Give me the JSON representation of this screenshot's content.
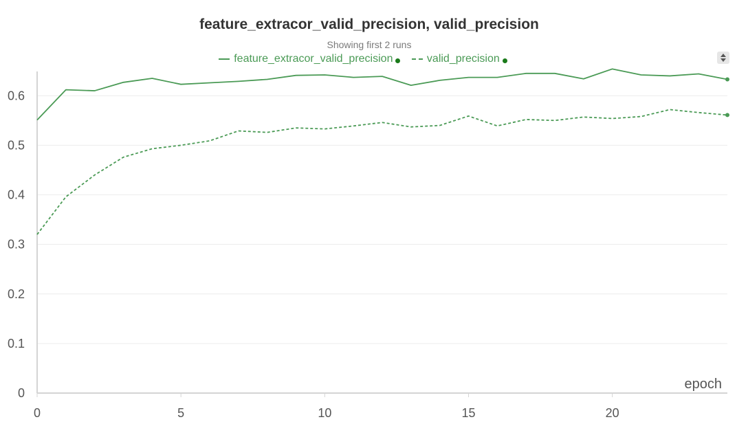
{
  "colors": {
    "series": "#4a9a55",
    "legend_dot": "#1a7a1a",
    "grid": "#ececec",
    "axis": "#d4d4d4"
  },
  "chart_data": {
    "type": "line",
    "title": "feature_extracor_valid_precision, valid_precision",
    "subtitle": "Showing first 2 runs",
    "xlabel": "epoch",
    "ylabel": "",
    "xlim": [
      0,
      24
    ],
    "ylim": [
      0,
      0.66
    ],
    "xticks": [
      "0",
      "5",
      "10",
      "15",
      "20"
    ],
    "yticks": [
      "0",
      "0.1",
      "0.2",
      "0.3",
      "0.4",
      "0.5",
      "0.6"
    ],
    "grid": "horizontal",
    "legend_position": "top-center",
    "x": [
      0,
      1,
      2,
      3,
      4,
      5,
      6,
      7,
      8,
      9,
      10,
      11,
      12,
      13,
      14,
      15,
      16,
      17,
      18,
      19,
      20,
      21,
      22,
      23,
      24
    ],
    "series": [
      {
        "name": "feature_extracor_valid_precision",
        "style": "solid",
        "values": [
          0.551,
          0.612,
          0.61,
          0.627,
          0.635,
          0.623,
          0.626,
          0.629,
          0.633,
          0.641,
          0.642,
          0.637,
          0.639,
          0.621,
          0.631,
          0.637,
          0.637,
          0.645,
          0.645,
          0.634,
          0.654,
          0.642,
          0.64,
          0.644,
          0.633
        ]
      },
      {
        "name": "valid_precision",
        "style": "dashed",
        "values": [
          0.32,
          0.396,
          0.44,
          0.476,
          0.493,
          0.5,
          0.509,
          0.529,
          0.526,
          0.535,
          0.533,
          0.539,
          0.546,
          0.537,
          0.54,
          0.559,
          0.539,
          0.552,
          0.55,
          0.557,
          0.554,
          0.558,
          0.572,
          0.566,
          0.561
        ]
      }
    ]
  }
}
